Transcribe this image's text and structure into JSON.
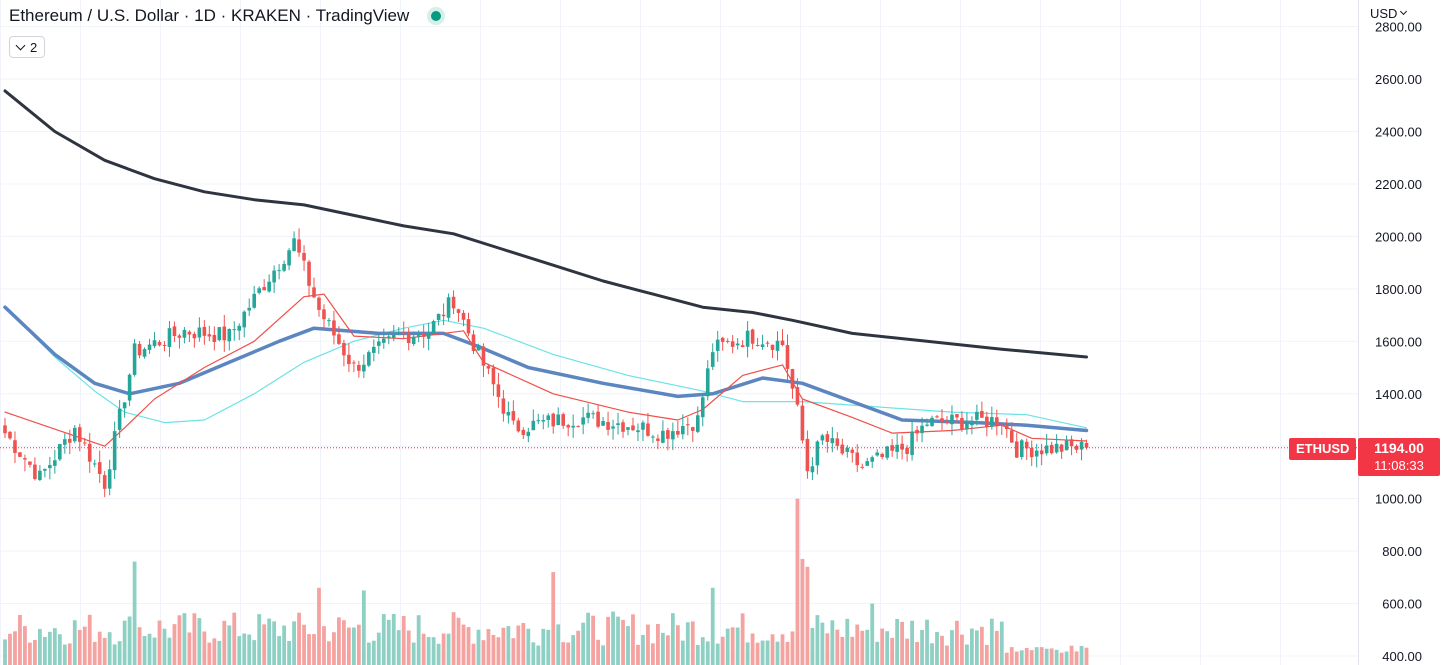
{
  "header": {
    "title": "Ethereum / U.S. Dollar · 1D · KRAKEN · TradingView",
    "indicator_count": "2",
    "currency": "USD"
  },
  "price_scale": {
    "labels": [
      "2800.00",
      "2600.00",
      "2400.00",
      "2200.00",
      "2000.00",
      "1800.00",
      "1600.00",
      "1400.00",
      "1200.00",
      "1000.00",
      "800.00",
      "600.00",
      "400.00"
    ]
  },
  "last_price": {
    "symbol": "ETHUSD",
    "price": "1194.00",
    "countdown": "11:08:33"
  },
  "colors": {
    "up": "#26a69a",
    "down": "#ef5350",
    "vol_up": "#8fd0c4",
    "vol_down": "#f4a3a1",
    "ma_short": "#f0504b",
    "ma_mid": "#5b86c0",
    "ma_cyan": "#6be3e6",
    "ma_long": "#2f3540",
    "grid": "#f0f3fa"
  },
  "chart_data": {
    "type": "candlestick",
    "symbol": "ETHUSD",
    "interval": "1D",
    "ylim": [
      400,
      2800
    ],
    "grid": true,
    "last_price": 1194.0,
    "keypoints": [
      {
        "i": 0,
        "close": 1250
      },
      {
        "i": 7,
        "close": 1080
      },
      {
        "i": 14,
        "close": 1270
      },
      {
        "i": 20,
        "close": 1060
      },
      {
        "i": 26,
        "close": 1560
      },
      {
        "i": 36,
        "close": 1640
      },
      {
        "i": 45,
        "close": 1620
      },
      {
        "i": 52,
        "close": 1820
      },
      {
        "i": 58,
        "close": 1980
      },
      {
        "i": 63,
        "close": 1720
      },
      {
        "i": 70,
        "close": 1500
      },
      {
        "i": 79,
        "close": 1620
      },
      {
        "i": 85,
        "close": 1640
      },
      {
        "i": 90,
        "close": 1760
      },
      {
        "i": 95,
        "close": 1550
      },
      {
        "i": 102,
        "close": 1270
      },
      {
        "i": 115,
        "close": 1310
      },
      {
        "i": 126,
        "close": 1280
      },
      {
        "i": 132,
        "close": 1250
      },
      {
        "i": 139,
        "close": 1300
      },
      {
        "i": 142,
        "close": 1570
      },
      {
        "i": 150,
        "close": 1620
      },
      {
        "i": 156,
        "close": 1590
      },
      {
        "i": 159,
        "close": 1330
      },
      {
        "i": 161,
        "close": 1110
      },
      {
        "i": 164,
        "close": 1230
      },
      {
        "i": 172,
        "close": 1120
      },
      {
        "i": 181,
        "close": 1200
      },
      {
        "i": 185,
        "close": 1290
      },
      {
        "i": 200,
        "close": 1300
      },
      {
        "i": 203,
        "close": 1190
      },
      {
        "i": 217,
        "close": 1194
      }
    ],
    "ma_short": [
      [
        0,
        1330
      ],
      [
        20,
        1200
      ],
      [
        24,
        1270
      ],
      [
        30,
        1380
      ],
      [
        40,
        1500
      ],
      [
        50,
        1600
      ],
      [
        60,
        1770
      ],
      [
        64,
        1780
      ],
      [
        70,
        1620
      ],
      [
        80,
        1610
      ],
      [
        92,
        1640
      ],
      [
        96,
        1520
      ],
      [
        110,
        1400
      ],
      [
        125,
        1330
      ],
      [
        135,
        1300
      ],
      [
        140,
        1340
      ],
      [
        148,
        1470
      ],
      [
        156,
        1510
      ],
      [
        160,
        1380
      ],
      [
        170,
        1310
      ],
      [
        178,
        1250
      ],
      [
        190,
        1260
      ],
      [
        200,
        1280
      ],
      [
        206,
        1230
      ],
      [
        217,
        1220
      ]
    ],
    "ma_mid": [
      [
        0,
        1730
      ],
      [
        10,
        1550
      ],
      [
        18,
        1440
      ],
      [
        25,
        1400
      ],
      [
        35,
        1440
      ],
      [
        45,
        1520
      ],
      [
        55,
        1600
      ],
      [
        62,
        1650
      ],
      [
        75,
        1630
      ],
      [
        88,
        1630
      ],
      [
        95,
        1580
      ],
      [
        105,
        1500
      ],
      [
        120,
        1440
      ],
      [
        135,
        1390
      ],
      [
        142,
        1400
      ],
      [
        152,
        1460
      ],
      [
        160,
        1440
      ],
      [
        170,
        1370
      ],
      [
        180,
        1300
      ],
      [
        195,
        1290
      ],
      [
        205,
        1280
      ],
      [
        217,
        1260
      ]
    ],
    "ma_cyan": [
      [
        0,
        1730
      ],
      [
        10,
        1540
      ],
      [
        18,
        1410
      ],
      [
        24,
        1330
      ],
      [
        32,
        1290
      ],
      [
        40,
        1300
      ],
      [
        50,
        1400
      ],
      [
        60,
        1520
      ],
      [
        70,
        1600
      ],
      [
        80,
        1650
      ],
      [
        88,
        1680
      ],
      [
        96,
        1650
      ],
      [
        110,
        1550
      ],
      [
        125,
        1470
      ],
      [
        140,
        1410
      ],
      [
        148,
        1370
      ],
      [
        160,
        1370
      ],
      [
        175,
        1350
      ],
      [
        190,
        1330
      ],
      [
        205,
        1320
      ],
      [
        217,
        1270
      ]
    ],
    "ma_long": [
      [
        0,
        2555
      ],
      [
        10,
        2400
      ],
      [
        20,
        2290
      ],
      [
        30,
        2220
      ],
      [
        40,
        2170
      ],
      [
        50,
        2140
      ],
      [
        60,
        2120
      ],
      [
        70,
        2080
      ],
      [
        80,
        2040
      ],
      [
        90,
        2010
      ],
      [
        100,
        1950
      ],
      [
        110,
        1890
      ],
      [
        120,
        1830
      ],
      [
        130,
        1780
      ],
      [
        140,
        1730
      ],
      [
        150,
        1710
      ],
      [
        158,
        1680
      ],
      [
        170,
        1630
      ],
      [
        185,
        1600
      ],
      [
        200,
        1570
      ],
      [
        217,
        1540
      ]
    ],
    "volume": {
      "spikes": [
        {
          "i": 26,
          "vol": 760
        },
        {
          "i": 63,
          "vol": 660
        },
        {
          "i": 72,
          "vol": 650
        },
        {
          "i": 110,
          "vol": 720
        },
        {
          "i": 142,
          "vol": 660
        },
        {
          "i": 159,
          "vol": 1000
        },
        {
          "i": 160,
          "vol": 770
        },
        {
          "i": 161,
          "vol": 740
        },
        {
          "i": 174,
          "vol": 600
        }
      ]
    }
  }
}
